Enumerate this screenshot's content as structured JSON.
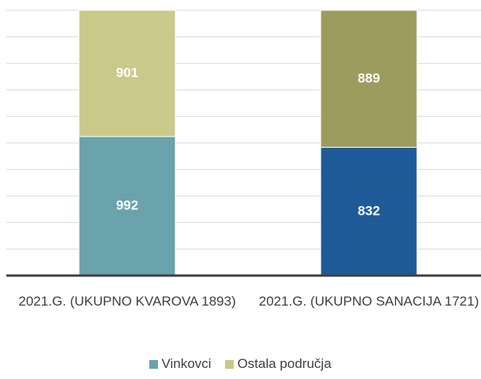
{
  "chart_data": {
    "type": "stacked_bar_percent",
    "categories": [
      "2021.G. (UKUPNO KVAROVA 1893)",
      "2021.G. (UKUPNO SANACIJA 1721)"
    ],
    "series": [
      {
        "name": "Vinkovci",
        "color": "#6aa3ab",
        "colors": [
          "#6aa3ab",
          "#1f5a99"
        ],
        "values": [
          992,
          832
        ]
      },
      {
        "name": "Ostala područja",
        "color": "#c9c98a",
        "colors": [
          "#c9c98a",
          "#9c9c5e"
        ],
        "values": [
          901,
          889
        ]
      }
    ],
    "ylim": [
      0,
      100
    ],
    "yticks": [
      0,
      10,
      20,
      30,
      40,
      50,
      60,
      70,
      80,
      90,
      100
    ],
    "ytick_labels": false,
    "grid": true,
    "legend": "bottom"
  }
}
